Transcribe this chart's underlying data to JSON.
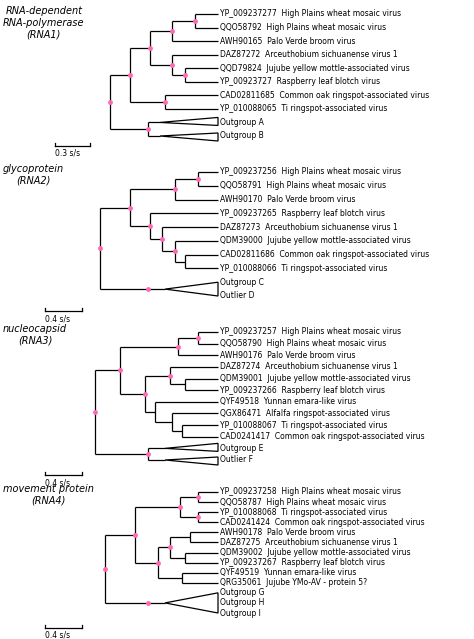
{
  "trees": [
    {
      "title": "RNA-dependent\nRNA-polymerase\n(RNA1)",
      "scale_label": "0.3 s/s",
      "taxa": [
        "YP_009237277  High Plains wheat mosaic virus",
        "QQO58792  High Plains wheat mosaic virus",
        "AWH90165  Palo Verde broom virus",
        "DAZ87272  Arceuthobium sichuanense virus 1",
        "QQD79824  Jujube yellow mottle-associated virus",
        "YP_00923727  Raspberry leaf blotch virus",
        "CAD02811685  Common oak ringspot-associated virus",
        "YP_010088065  Ti ringspot-associated virus",
        "Outgroup A",
        "Outgroup B"
      ]
    },
    {
      "title": "glycoprotein\n(RNA2)",
      "scale_label": "0.4 s/s",
      "taxa": [
        "YP_009237256  High Plains wheat mosaic virus",
        "QQO58791  High Plains wheat mosaic virus",
        "AWH90170  Palo Verde broom virus",
        "YP_009237265  Raspberry leaf blotch virus",
        "DAZ87273  Arceuthobium sichuanense virus 1",
        "QDM39000  Jujube yellow mottle-associated virus",
        "CAD02811686  Common oak ringspot-associated virus",
        "YP_010088066  Ti ringspot-associated virus",
        "Outgroup C",
        "Outlier D"
      ]
    },
    {
      "title": "nucleocapsid\n(RNA3)",
      "scale_label": "0.4 s/s",
      "taxa": [
        "YP_009237257  High Plains wheat mosaic virus",
        "QQO58790  High Plains wheat mosaic virus",
        "AWH90176  Palo Verde broom virus",
        "DAZ87274  Arceuthobium sichuanense virus 1",
        "QDM39001  Jujube yellow mottle-associated virus",
        "YP_009237266  Raspberry leaf blotch virus",
        "QYF49518  Yunnan emara-like virus",
        "QGX86471  Alfalfa ringspot-associated virus",
        "YP_010088067  Ti ringspot-associated virus",
        "CAD0241417  Common oak ringspot-associated virus",
        "Outgroup E",
        "Outlier F"
      ]
    },
    {
      "title": "movement protein\n(RNA4)",
      "scale_label": "0.4 s/s",
      "taxa": [
        "YP_009237258  High Plains wheat mosaic virus",
        "QQO58787  High Plains wheat mosaic virus",
        "YP_010088068  Ti ringspot-associated virus",
        "CAD0241424  Common oak ringspot-associated virus",
        "AWH90178  Palo Verde broom virus",
        "DAZ87275  Arceuthobium sichuanense virus 1",
        "QDM39002  Jujube yellow mottle-associated virus",
        "YP_009237267  Raspberry leaf blotch virus",
        "QYF49519  Yunnan emara-like virus",
        "QRG35061  Jujube YMo-AV - protein 5?",
        "Outgroup G",
        "Outgroup H",
        "Outgroup I"
      ]
    }
  ],
  "node_color": "#FF69B4",
  "line_color": "#000000",
  "text_color": "#000000",
  "bg_color": "#ffffff",
  "fontsize": 5.5,
  "title_fontsize": 7.0
}
